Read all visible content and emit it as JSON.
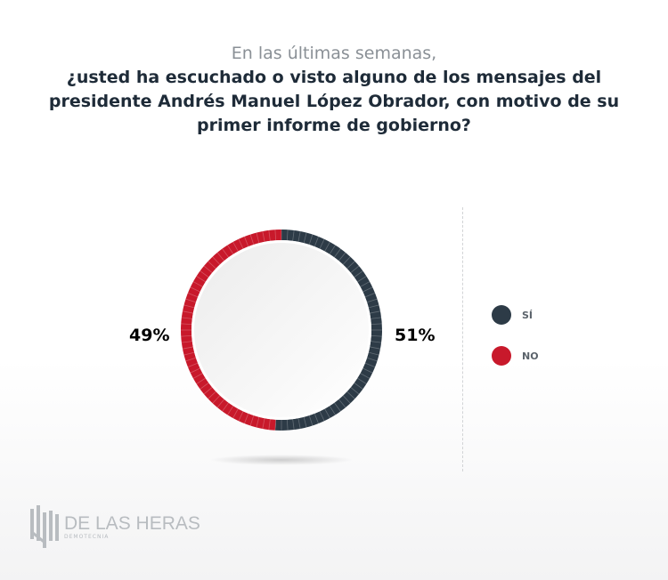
{
  "title": {
    "subtitle": "En las últimas semanas,",
    "question_lines": [
      "¿usted ha escuchado o visto alguno de los mensajes del",
      "presidente Andrés Manuel López Obrador, con motivo de su",
      "primer informe de gobierno?"
    ]
  },
  "chart_data": {
    "type": "pie",
    "donut": true,
    "categories": [
      "SÍ",
      "NO"
    ],
    "values": [
      51,
      49
    ],
    "labels": [
      "51%",
      "49%"
    ],
    "colors": [
      "#2d3b47",
      "#c8192b"
    ],
    "legend_position": "right"
  },
  "legend": [
    {
      "label": "SÍ",
      "color": "#2d3b47"
    },
    {
      "label": "NO",
      "color": "#c8192b"
    }
  ],
  "logo": {
    "main": "DE LAS HERAS",
    "sub": "DEMOTECNIA"
  }
}
